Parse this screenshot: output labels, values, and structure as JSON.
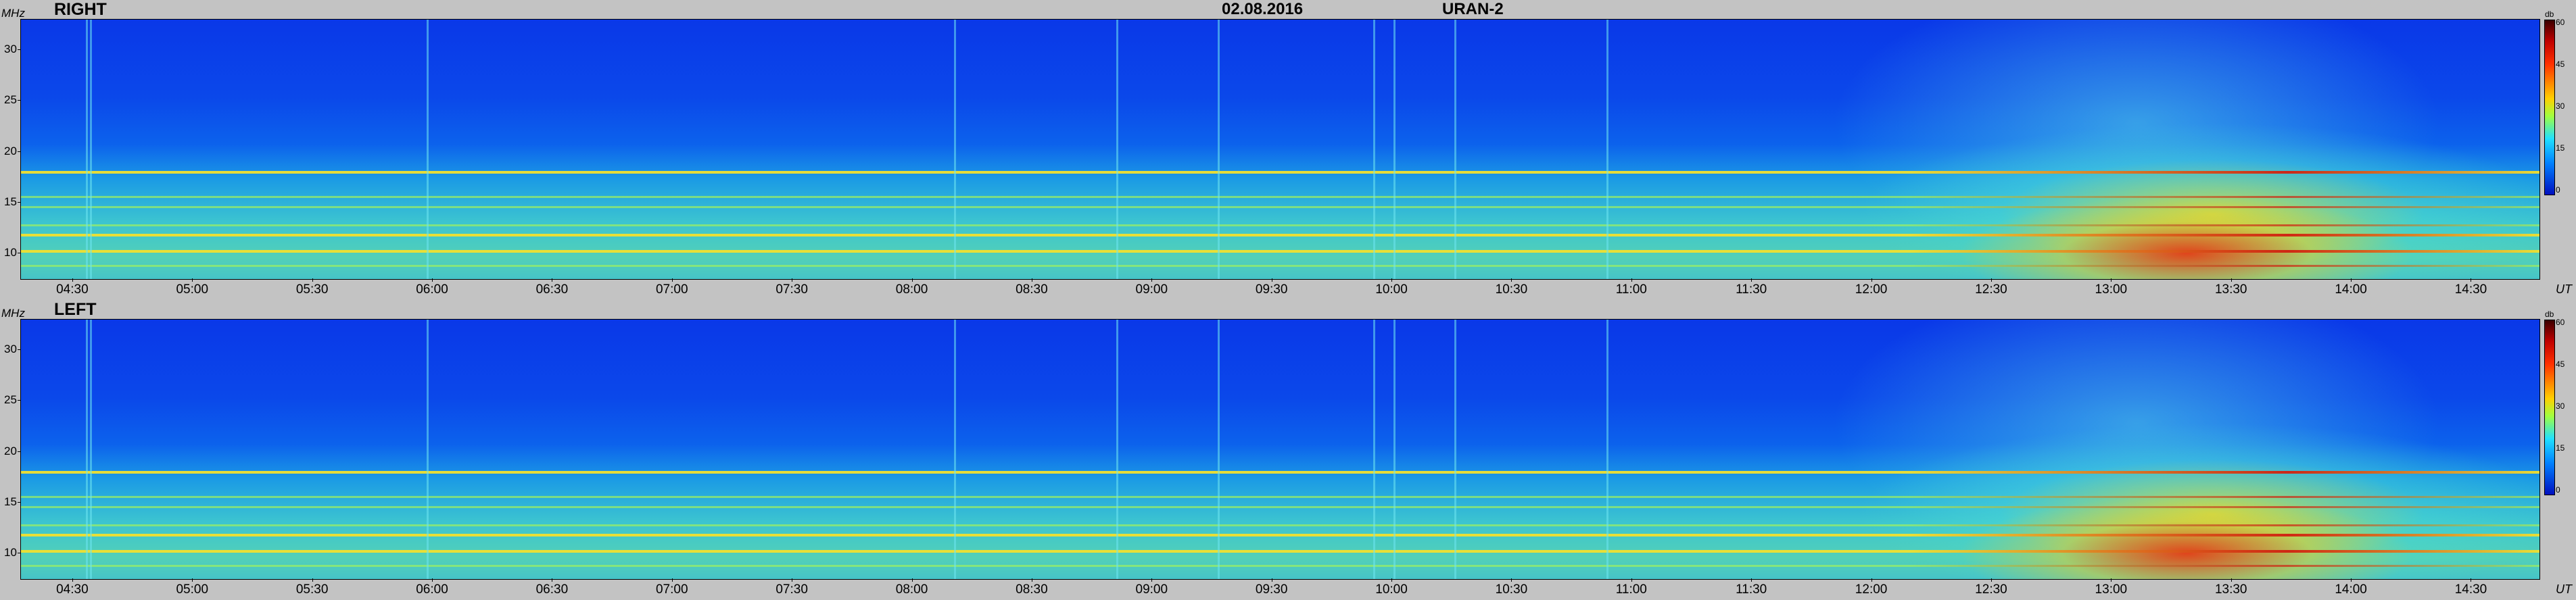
{
  "header": {
    "date": "02.08.2016",
    "instrument": "URAN-2"
  },
  "chart_data": {
    "type": "heatmap",
    "x_unit": "UT",
    "y_unit": "MHz",
    "colorbar_unit": "db",
    "colorbar_ticks": [
      "60",
      "45",
      "30",
      "15",
      "0"
    ],
    "y_ticks": [
      "30",
      "25",
      "20",
      "15",
      "10"
    ],
    "x_ticks": [
      "04:30",
      "05:00",
      "05:30",
      "06:00",
      "06:30",
      "07:00",
      "07:30",
      "08:00",
      "08:30",
      "09:00",
      "09:30",
      "10:00",
      "10:30",
      "11:00",
      "11:30",
      "12:00",
      "12:30",
      "13:00",
      "13:30",
      "14:00",
      "14:30"
    ],
    "panels": [
      {
        "label": "RIGHT"
      },
      {
        "label": "LEFT"
      }
    ],
    "bands_mhz": [
      {
        "freq": 18.0,
        "level": "high"
      },
      {
        "freq": 15.6,
        "level": "medium"
      },
      {
        "freq": 14.6,
        "level": "medium"
      },
      {
        "freq": 12.8,
        "level": "medium"
      },
      {
        "freq": 11.8,
        "level": "high"
      },
      {
        "freq": 10.2,
        "level": "high"
      },
      {
        "freq": 8.8,
        "level": "medium"
      }
    ],
    "colors": {
      "low": "#0a38e8",
      "mid": "#2cc0dc",
      "high": "#f0e030",
      "peak": "#d02010"
    }
  }
}
